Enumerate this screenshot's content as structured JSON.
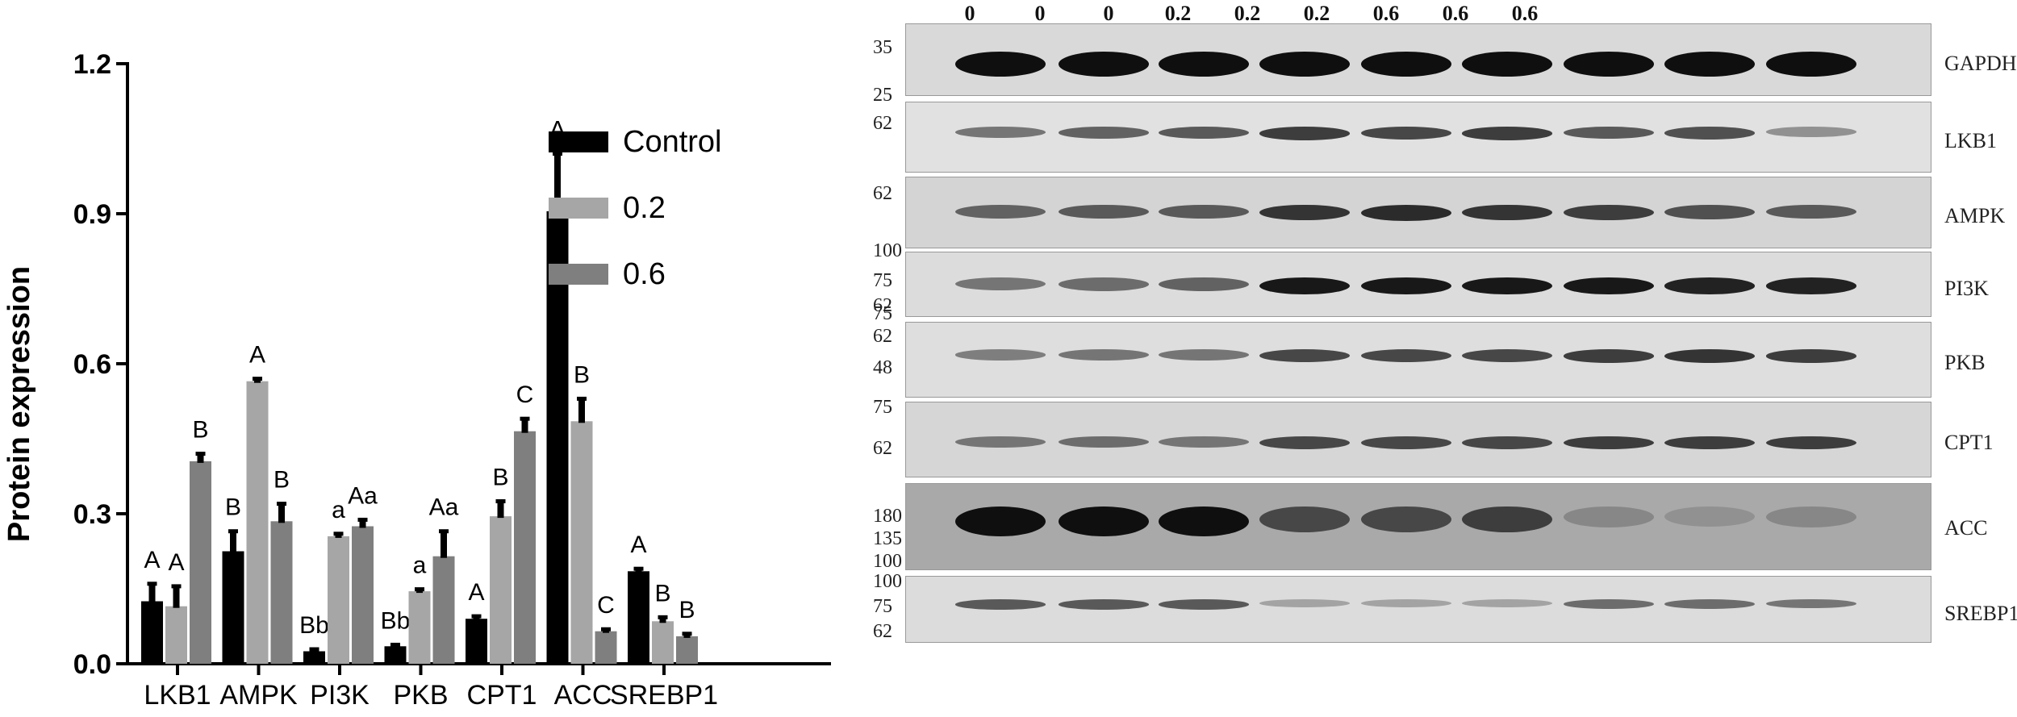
{
  "chart_data": {
    "type": "bar",
    "ylabel": "Protein expression",
    "ylim": [
      0,
      1.2
    ],
    "yticks": [
      "0.0",
      "0.3",
      "0.6",
      "0.9",
      "1.2"
    ],
    "categories": [
      "LKB1",
      "AMPK",
      "PI3K",
      "PKB",
      "CPT1",
      "ACC",
      "SREBP1"
    ],
    "series": [
      {
        "name": "Control",
        "color": "#000000",
        "values": [
          0.125,
          0.225,
          0.025,
          0.035,
          0.09,
          0.905,
          0.185
        ],
        "errors": [
          0.035,
          0.04,
          0.004,
          0.003,
          0.005,
          0.115,
          0.005
        ],
        "labels": [
          "A",
          "B",
          "Bb",
          "Bb",
          "A",
          "A",
          "A"
        ]
      },
      {
        "name": "0.2",
        "color": "#a6a6a6",
        "values": [
          0.115,
          0.565,
          0.255,
          0.145,
          0.295,
          0.485,
          0.085
        ],
        "errors": [
          0.04,
          0.005,
          0.005,
          0.004,
          0.03,
          0.045,
          0.008
        ],
        "labels": [
          "A",
          "A",
          "a",
          "a",
          "B",
          "B",
          "B"
        ]
      },
      {
        "name": "0.6",
        "color": "#7f7f7f",
        "values": [
          0.405,
          0.285,
          0.275,
          0.215,
          0.465,
          0.065,
          0.055
        ],
        "errors": [
          0.015,
          0.035,
          0.013,
          0.05,
          0.025,
          0.004,
          0.005
        ],
        "labels": [
          "B",
          "B",
          "Aa",
          "Aa",
          "C",
          "C",
          "B"
        ]
      }
    ],
    "legend": [
      "Control",
      "0.2",
      "0.6"
    ],
    "legend_position": "right"
  },
  "blot": {
    "lane_headers": [
      "0",
      "0",
      "0",
      "0.2",
      "0.2",
      "0.2",
      "0.6",
      "0.6",
      "0.6"
    ],
    "rows": [
      {
        "label": "GAPDH",
        "markers": [
          "35",
          "25"
        ],
        "bg": "#d9d9d9",
        "intensity": [
          1,
          1,
          1,
          1,
          1,
          1,
          1,
          1,
          1
        ]
      },
      {
        "label": "LKB1",
        "markers": [
          "62"
        ],
        "bg": "#e1e1e1",
        "intensity": [
          0.45,
          0.55,
          0.6,
          0.75,
          0.7,
          0.75,
          0.6,
          0.65,
          0.3
        ]
      },
      {
        "label": "AMPK",
        "markers": [
          "62"
        ],
        "bg": "#d4d4d4",
        "intensity": [
          0.55,
          0.6,
          0.6,
          0.8,
          0.85,
          0.8,
          0.75,
          0.65,
          0.6
        ]
      },
      {
        "label": "PI3K",
        "markers": [
          "100",
          "75",
          "62"
        ],
        "bg": "#dcdcdc",
        "intensity": [
          0.45,
          0.5,
          0.55,
          0.95,
          0.95,
          0.95,
          0.95,
          0.9,
          0.9
        ]
      },
      {
        "label": "PKB",
        "markers": [
          "75",
          "62",
          "48"
        ],
        "bg": "#dedede",
        "intensity": [
          0.4,
          0.45,
          0.45,
          0.7,
          0.7,
          0.7,
          0.75,
          0.8,
          0.75
        ]
      },
      {
        "label": "CPT1",
        "markers": [
          "75",
          "62"
        ],
        "bg": "#d6d6d6",
        "intensity": [
          0.45,
          0.5,
          0.45,
          0.7,
          0.7,
          0.7,
          0.75,
          0.75,
          0.75
        ]
      },
      {
        "label": "ACC",
        "markers": [
          "180",
          "135",
          "100"
        ],
        "bg": "#a9a9a9",
        "intensity": [
          1,
          1,
          1,
          0.7,
          0.7,
          0.75,
          0.35,
          0.3,
          0.35
        ]
      },
      {
        "label": "SREBP1",
        "markers": [
          "100",
          "75",
          "62"
        ],
        "bg": "#dcdcdc",
        "intensity": [
          0.6,
          0.6,
          0.6,
          0.2,
          0.2,
          0.2,
          0.5,
          0.5,
          0.45
        ]
      }
    ]
  }
}
